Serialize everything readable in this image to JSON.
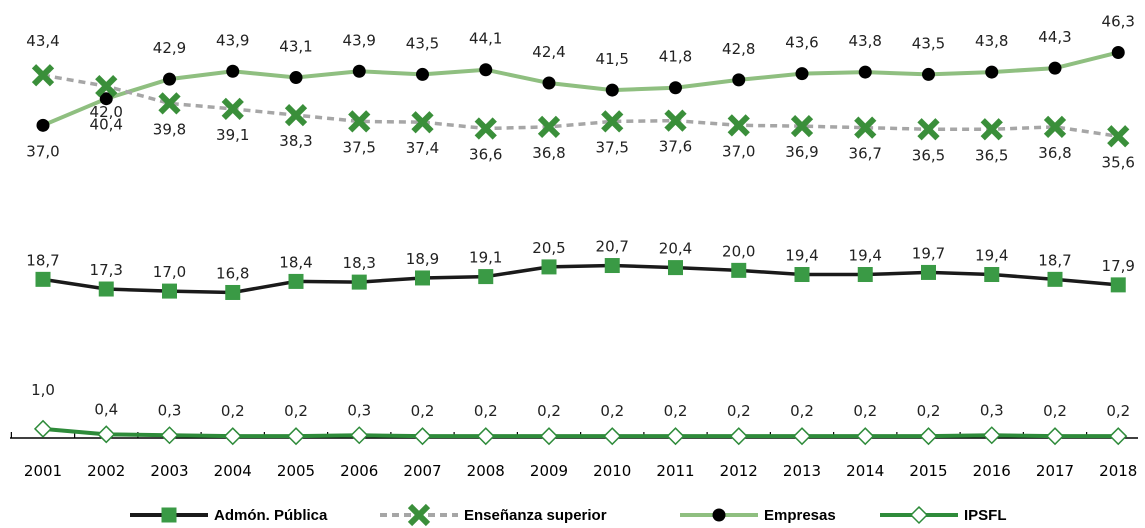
{
  "chart_data": {
    "type": "line",
    "title": "",
    "xlabel": "",
    "ylabel": "",
    "categories": [
      "2001",
      "2002",
      "2003",
      "2004",
      "2005",
      "2006",
      "2007",
      "2008",
      "2009",
      "2010",
      "2011",
      "2012",
      "2013",
      "2014",
      "2015",
      "2016",
      "2017",
      "2018"
    ],
    "series": [
      {
        "name": "Empresas",
        "key": "empresas",
        "values": [
          37.0,
          40.4,
          42.9,
          43.9,
          43.1,
          43.9,
          43.5,
          44.1,
          42.4,
          41.5,
          41.8,
          42.8,
          43.6,
          43.8,
          43.5,
          43.8,
          44.3,
          46.3
        ],
        "line_color": "#8fbf80",
        "marker": "circle",
        "marker_color": "#000000",
        "dashed": false
      },
      {
        "name": "Enseñanza superior",
        "key": "ensenanza",
        "values": [
          43.4,
          42.0,
          39.8,
          39.1,
          38.3,
          37.5,
          37.4,
          36.6,
          36.8,
          37.5,
          37.6,
          37.0,
          36.9,
          36.7,
          36.5,
          36.5,
          36.8,
          35.6
        ],
        "line_color": "#a6a6a6",
        "marker": "x",
        "marker_color": "#3a8f3a",
        "dashed": true
      },
      {
        "name": "Admón. Pública",
        "key": "admon",
        "values": [
          18.7,
          17.3,
          17.0,
          16.8,
          18.4,
          18.3,
          18.9,
          19.1,
          20.5,
          20.7,
          20.4,
          20.0,
          19.4,
          19.4,
          19.7,
          19.4,
          18.7,
          17.9
        ],
        "line_color": "#1a1a1a",
        "marker": "square",
        "marker_color": "#3a9a45",
        "dashed": false
      },
      {
        "name": "IPSFL",
        "key": "ipsfl",
        "values": [
          1.0,
          0.4,
          0.3,
          0.2,
          0.2,
          0.3,
          0.2,
          0.2,
          0.2,
          0.2,
          0.2,
          0.2,
          0.2,
          0.2,
          0.2,
          0.3,
          0.2,
          0.2
        ],
        "line_color": "#2e8b3a",
        "marker": "diamond-open",
        "marker_color": "#2e8b3a",
        "dashed": false
      }
    ],
    "value_labels": {
      "empresas": [
        "37,0",
        "40,4",
        "42,9",
        "43,9",
        "43,1",
        "43,9",
        "43,5",
        "44,1",
        "42,4",
        "41,5",
        "41,8",
        "42,8",
        "43,6",
        "43,8",
        "43,5",
        "43,8",
        "44,3",
        "46,3"
      ],
      "ensenanza": [
        "43,4",
        "42,0",
        "39,8",
        "39,1",
        "38,3",
        "37,5",
        "37,4",
        "36,6",
        "36,8",
        "37,5",
        "37,6",
        "37,0",
        "36,9",
        "36,7",
        "36,5",
        "36,5",
        "36,8",
        "35,6"
      ],
      "admon": [
        "18,7",
        "17,3",
        "17,0",
        "16,8",
        "18,4",
        "18,3",
        "18,9",
        "19,1",
        "20,5",
        "20,7",
        "20,4",
        "20,0",
        "19,4",
        "19,4",
        "19,7",
        "19,4",
        "18,7",
        "17,9"
      ],
      "ipsfl": [
        "1,0",
        "0,4",
        "0,3",
        "0,2",
        "0,2",
        "0,3",
        "0,2",
        "0,2",
        "0,2",
        "0,2",
        "0,2",
        "0,2",
        "0,2",
        "0,2",
        "0,2",
        "0,3",
        "0,2",
        "0,2"
      ]
    },
    "y_axis_visible": false,
    "grid": false,
    "legend_position": "bottom",
    "legend_order": [
      "Admón. Pública",
      "Enseñanza superior",
      "Empresas",
      "IPSFL"
    ]
  }
}
